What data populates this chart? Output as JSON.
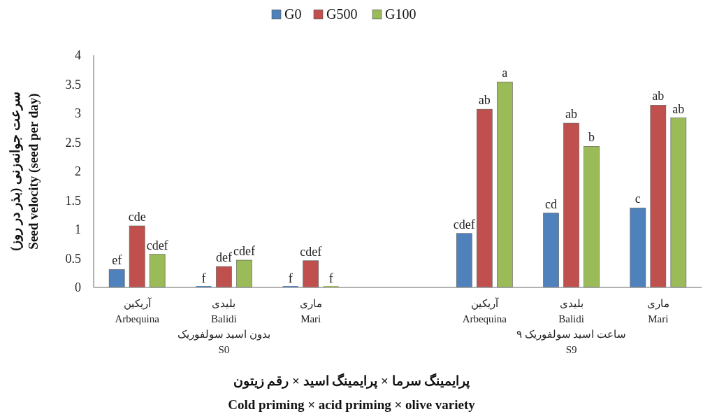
{
  "chart_data": {
    "type": "bar",
    "categories": [
      "آریکین\nArbequina",
      "بلیدی\nBalidi\nبدون اسید سولفوریک\nS0",
      "ماری\nMari",
      null,
      "آریکین\nArbequina",
      "بلیدی\nBalidi\n۹ ساعت اسید سولفوریک\nS9",
      "ماری\nMari"
    ],
    "series": [
      {
        "name": "G0",
        "color": "#4f81bd",
        "values": [
          0.31,
          0,
          0,
          null,
          0.93,
          1.28,
          1.37
        ],
        "value_labels": [
          "ef",
          "f",
          "f",
          null,
          "cdef",
          "cd",
          "c"
        ]
      },
      {
        "name": "G500",
        "color": "#c0504d",
        "values": [
          1.06,
          0.36,
          0.46,
          null,
          3.07,
          2.83,
          3.14
        ],
        "value_labels": [
          "cde",
          "def",
          "cdef",
          null,
          "ab",
          "ab",
          "ab"
        ]
      },
      {
        "name": "G100",
        "color": "#9bbb59",
        "values": [
          0.57,
          0.47,
          0,
          null,
          3.54,
          2.43,
          2.92
        ],
        "value_labels": [
          "cdef",
          "cdef",
          "f",
          null,
          "a",
          "b",
          "ab"
        ]
      }
    ],
    "ylabel": "سرعت جوانه‌زنی  (بذر در روز)\nSeed velocity (seed per day)",
    "xlabel": "پرایمینگ سرما × پرایمینگ اسید × رقم زیتون\nCold priming × acid priming × olive variety",
    "ylim": [
      0,
      4
    ],
    "yticks": [
      0,
      0.5,
      1,
      1.5,
      2,
      2.5,
      3,
      3.5,
      4
    ],
    "grid": false,
    "legend": "top"
  }
}
